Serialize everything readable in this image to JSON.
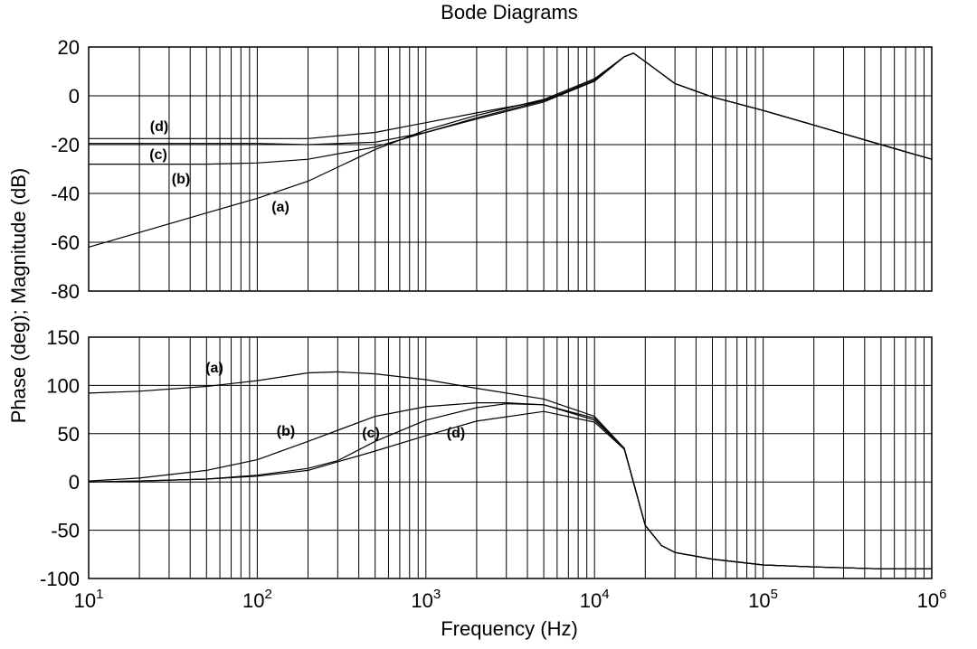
{
  "chart_data": {
    "type": "line",
    "title": "Bode Diagrams",
    "ylabel": "Phase (deg); Magnitude (dB)",
    "xlabel": "Frequency (Hz)",
    "xscale": "log",
    "xlim": [
      10,
      1000000
    ],
    "x_tick_labels": [
      {
        "base": "10",
        "exp": "1"
      },
      {
        "base": "10",
        "exp": "2"
      },
      {
        "base": "10",
        "exp": "3"
      },
      {
        "base": "10",
        "exp": "4"
      },
      {
        "base": "10",
        "exp": "5"
      },
      {
        "base": "10",
        "exp": "6"
      }
    ],
    "grid": true,
    "panels": [
      {
        "name": "magnitude",
        "unit": "dB",
        "ylim": [
          -80,
          20
        ],
        "y_ticks": [
          "20",
          "0",
          "-20",
          "-40",
          "-60",
          "-80"
        ],
        "series": [
          {
            "label": "(a)",
            "x": [
              10,
              20,
              50,
              100,
              200,
              500,
              1000,
              2000,
              5000,
              10000,
              15000,
              17000,
              20000,
              30000,
              50000,
              100000,
              200000,
              500000,
              1000000
            ],
            "y": [
              -62,
              -56,
              -48,
              -42,
              -35,
              -22,
              -14,
              -8,
              -1.5,
              7,
              16,
              17.5,
              14,
              5,
              -0.5,
              -6,
              -12,
              -20,
              -26
            ]
          },
          {
            "label": "(b)",
            "x": [
              10,
              20,
              50,
              100,
              200,
              500,
              1000,
              2000,
              5000,
              10000,
              15000,
              17000,
              20000,
              30000,
              50000,
              100000,
              200000,
              500000,
              1000000
            ],
            "y": [
              -28,
              -28,
              -28,
              -27.5,
              -26,
              -21,
              -15,
              -9,
              -2,
              6.5,
              16,
              17.5,
              14,
              5,
              -0.5,
              -6,
              -12,
              -20,
              -26
            ]
          },
          {
            "label": "(c)",
            "x": [
              10,
              20,
              50,
              100,
              200,
              500,
              1000,
              2000,
              5000,
              10000,
              15000,
              17000,
              20000,
              30000,
              50000,
              100000,
              200000,
              500000,
              1000000
            ],
            "y": [
              -19.5,
              -19.5,
              -19.5,
              -19.5,
              -20,
              -19,
              -15,
              -9.5,
              -2.5,
              6,
              16,
              17.5,
              14,
              5,
              -0.5,
              -6,
              -12,
              -20,
              -26
            ]
          },
          {
            "label": "(d)",
            "x": [
              10,
              20,
              50,
              100,
              200,
              500,
              1000,
              2000,
              5000,
              10000,
              15000,
              17000,
              20000,
              30000,
              50000,
              100000,
              200000,
              500000,
              1000000
            ],
            "y": [
              -17.5,
              -17.5,
              -17.5,
              -17.5,
              -17.5,
              -15,
              -11,
              -7,
              -2,
              6,
              16,
              17.5,
              14,
              5,
              -0.5,
              -6,
              -12,
              -20,
              -26
            ]
          }
        ]
      },
      {
        "name": "phase",
        "unit": "deg",
        "ylim": [
          -100,
          150
        ],
        "y_ticks": [
          "150",
          "100",
          "50",
          "0",
          "-50",
          "-100"
        ],
        "series": [
          {
            "label": "(a)",
            "x": [
              10,
              20,
              50,
              100,
              200,
              300,
              500,
              1000,
              2000,
              5000,
              10000,
              15000,
              20000,
              25000,
              30000,
              50000,
              100000,
              200000,
              500000,
              1000000
            ],
            "y": [
              92,
              94,
              99,
              105,
              113,
              114,
              112,
              106,
              97,
              86,
              68,
              35,
              -45,
              -66,
              -73,
              -80,
              -86,
              -88,
              -90,
              -90
            ]
          },
          {
            "label": "(b)",
            "x": [
              10,
              20,
              50,
              100,
              200,
              500,
              1000,
              2000,
              3000,
              5000,
              10000,
              15000,
              20000,
              25000,
              30000,
              50000,
              100000,
              200000,
              500000,
              1000000
            ],
            "y": [
              1,
              4,
              12,
              23,
              42,
              68,
              78,
              82,
              82,
              80,
              66,
              35,
              -45,
              -66,
              -73,
              -80,
              -86,
              -88,
              -90,
              -90
            ]
          },
          {
            "label": "(c)",
            "x": [
              10,
              20,
              50,
              100,
              200,
              300,
              500,
              1000,
              2000,
              3000,
              5000,
              10000,
              15000,
              20000,
              25000,
              30000,
              50000,
              100000,
              200000,
              500000,
              1000000
            ],
            "y": [
              0,
              1,
              3,
              7,
              14,
              22,
              42,
              64,
              77,
              81,
              80,
              64,
              35,
              -45,
              -66,
              -73,
              -80,
              -86,
              -88,
              -90,
              -90
            ]
          },
          {
            "label": "(d)",
            "x": [
              10,
              20,
              50,
              100,
              200,
              500,
              1000,
              2000,
              5000,
              10000,
              15000,
              20000,
              25000,
              30000,
              50000,
              100000,
              200000,
              500000,
              1000000
            ],
            "y": [
              0,
              1,
              3,
              6,
              12,
              32,
              48,
              63,
              73,
              62,
              34,
              -45,
              -66,
              -73,
              -80,
              -86,
              -88,
              -90,
              -90
            ]
          }
        ]
      }
    ]
  }
}
